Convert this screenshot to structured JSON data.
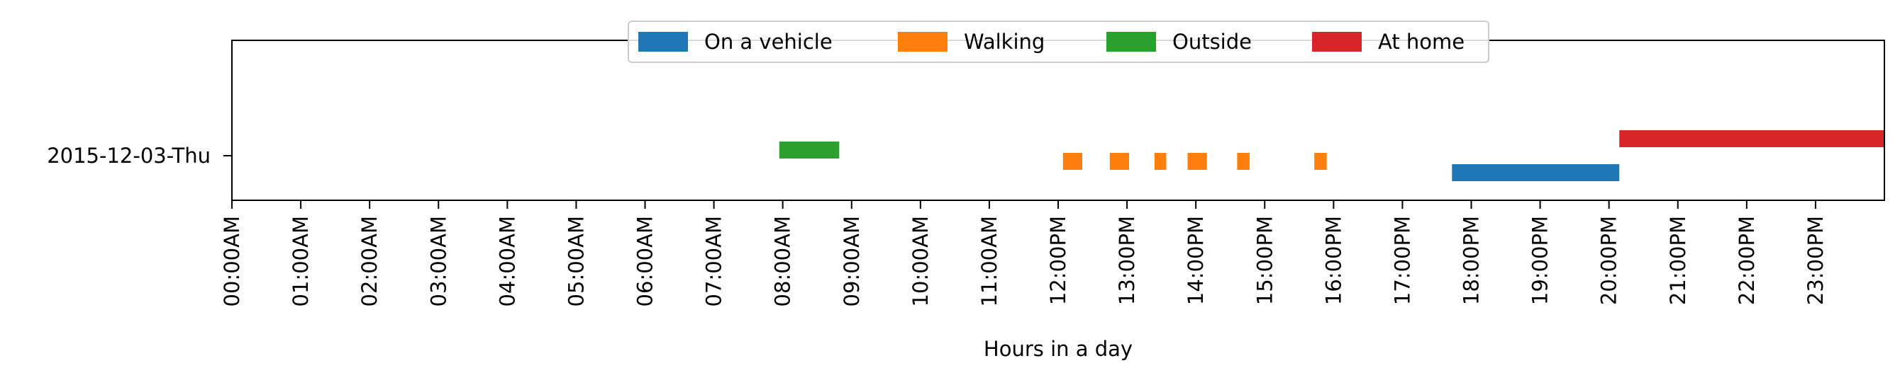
{
  "chart_data": {
    "type": "gantt",
    "xlabel": "Hours in a day",
    "ylabel": "",
    "title": "",
    "xlim": [
      0,
      24
    ],
    "x_unit": "hour of day",
    "y_categories": [
      "2015-12-03-Thu"
    ],
    "x_tick_labels": [
      "00:00AM",
      "01:00AM",
      "02:00AM",
      "03:00AM",
      "04:00AM",
      "05:00AM",
      "06:00AM",
      "07:00AM",
      "08:00AM",
      "09:00AM",
      "10:00AM",
      "11:00AM",
      "12:00PM",
      "13:00PM",
      "14:00PM",
      "15:00PM",
      "16:00PM",
      "17:00PM",
      "18:00PM",
      "19:00PM",
      "20:00PM",
      "21:00PM",
      "22:00PM",
      "23:00PM"
    ],
    "grid": false,
    "legend_position": "top-center",
    "series": [
      {
        "name": "On a vehicle",
        "color": "#1f77b4",
        "intervals": [
          {
            "start": 17.72,
            "end": 20.15
          }
        ]
      },
      {
        "name": "Walking",
        "color": "#ff7f0e",
        "intervals": [
          {
            "start": 12.07,
            "end": 12.35
          },
          {
            "start": 12.75,
            "end": 13.03
          },
          {
            "start": 13.4,
            "end": 13.57
          },
          {
            "start": 13.88,
            "end": 14.16
          },
          {
            "start": 14.6,
            "end": 14.78
          },
          {
            "start": 15.72,
            "end": 15.9
          }
        ]
      },
      {
        "name": "Outside",
        "color": "#2ca02c",
        "intervals": [
          {
            "start": 7.95,
            "end": 8.82
          }
        ]
      },
      {
        "name": "At home",
        "color": "#d62728",
        "intervals": [
          {
            "start": 20.15,
            "end": 24.0
          }
        ]
      }
    ]
  }
}
